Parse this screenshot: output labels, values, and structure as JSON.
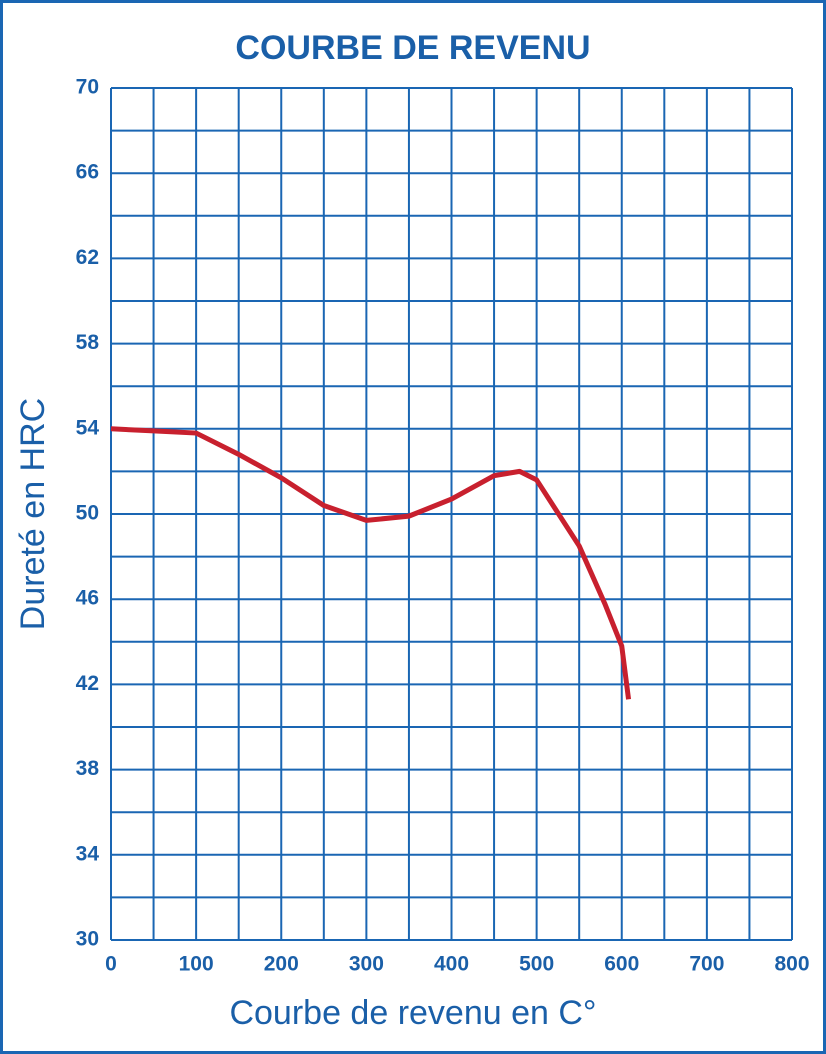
{
  "chart_data": {
    "type": "line",
    "title": "COURBE DE REVENU",
    "x_label": "Courbe de revenu en C°",
    "y_label": "Dureté en HRC",
    "x": [
      0,
      50,
      100,
      150,
      200,
      250,
      300,
      350,
      400,
      450,
      480,
      500,
      550,
      580,
      600,
      608
    ],
    "series": [
      {
        "name": "Dureté",
        "color": "#c8202e",
        "values": [
          54,
          53.9,
          53.8,
          52.8,
          51.7,
          50.4,
          49.7,
          49.9,
          50.7,
          51.8,
          52,
          51.6,
          48.5,
          45.8,
          43.8,
          41.3
        ]
      }
    ],
    "xlim": [
      0,
      800
    ],
    "ylim": [
      30,
      70
    ],
    "xticks": [
      0,
      100,
      200,
      300,
      400,
      500,
      600,
      700,
      800
    ],
    "yticks": [
      30,
      34,
      38,
      42,
      46,
      50,
      54,
      58,
      62,
      66,
      70
    ],
    "x_minor_ticks": [
      50,
      150,
      250,
      350,
      450,
      550,
      650,
      750
    ],
    "y_minor_ticks": [
      32,
      36,
      40,
      44,
      48,
      52,
      56,
      60,
      64,
      68
    ],
    "grid": true,
    "grid_color": "#1a66b3"
  }
}
